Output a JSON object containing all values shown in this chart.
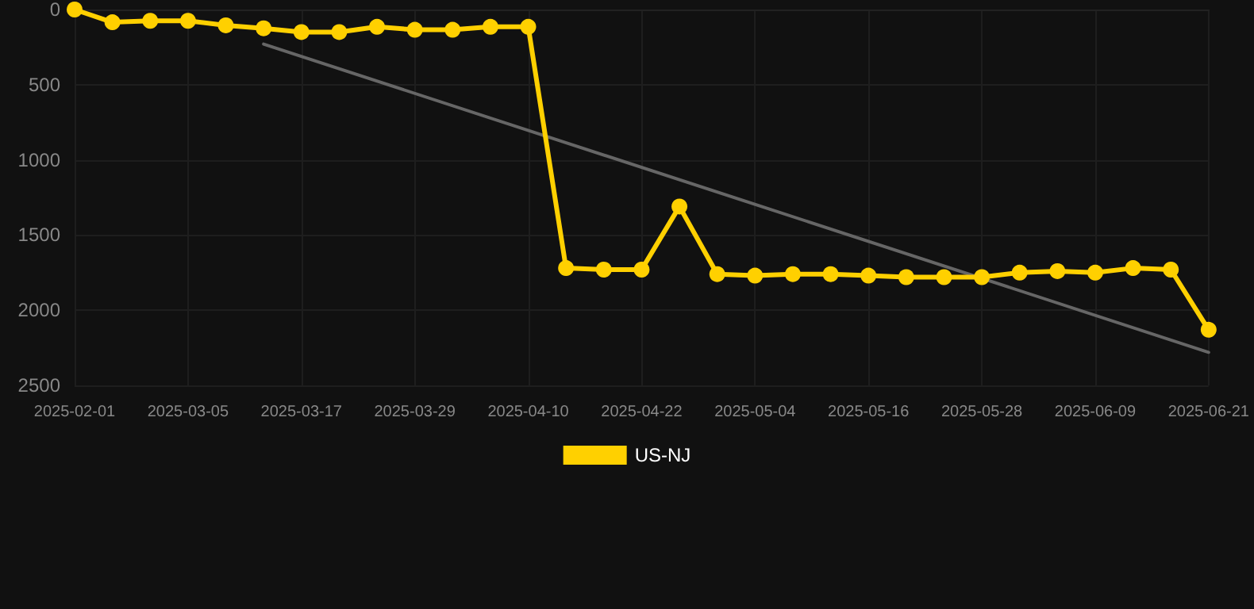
{
  "chart_data": {
    "type": "line",
    "categories": [
      "2025-02-01",
      null,
      null,
      "2025-03-05",
      null,
      null,
      "2025-03-17",
      null,
      null,
      "2025-03-29",
      null,
      null,
      "2025-04-10",
      null,
      null,
      "2025-04-22",
      null,
      null,
      "2025-05-04",
      null,
      null,
      "2025-05-16",
      null,
      null,
      "2025-05-28",
      null,
      null,
      "2025-06-09",
      null,
      null,
      "2025-06-21"
    ],
    "series": [
      {
        "name": "US-NJ",
        "color": "#ffd000",
        "marker": "circle",
        "values": [
          0,
          85,
          75,
          75,
          105,
          125,
          150,
          150,
          115,
          135,
          135,
          115,
          115,
          1720,
          1730,
          1730,
          1310,
          1760,
          1770,
          1760,
          1760,
          1770,
          1780,
          1780,
          1780,
          1750,
          1740,
          1750,
          1720,
          1730,
          2130
        ]
      },
      {
        "type": "line",
        "color": "#666666",
        "marker": "none",
        "values": [
          null,
          null,
          null,
          null,
          null,
          230,
          null,
          null,
          null,
          null,
          null,
          null,
          null,
          null,
          null,
          null,
          null,
          null,
          null,
          null,
          null,
          null,
          null,
          null,
          null,
          null,
          null,
          null,
          null,
          null,
          2280
        ]
      }
    ],
    "ylim": [
      2500,
      0
    ],
    "yticks": [
      0,
      500,
      1000,
      1500,
      2000,
      2500
    ],
    "grid": true,
    "legend": "bottom",
    "line_style": "solid"
  }
}
